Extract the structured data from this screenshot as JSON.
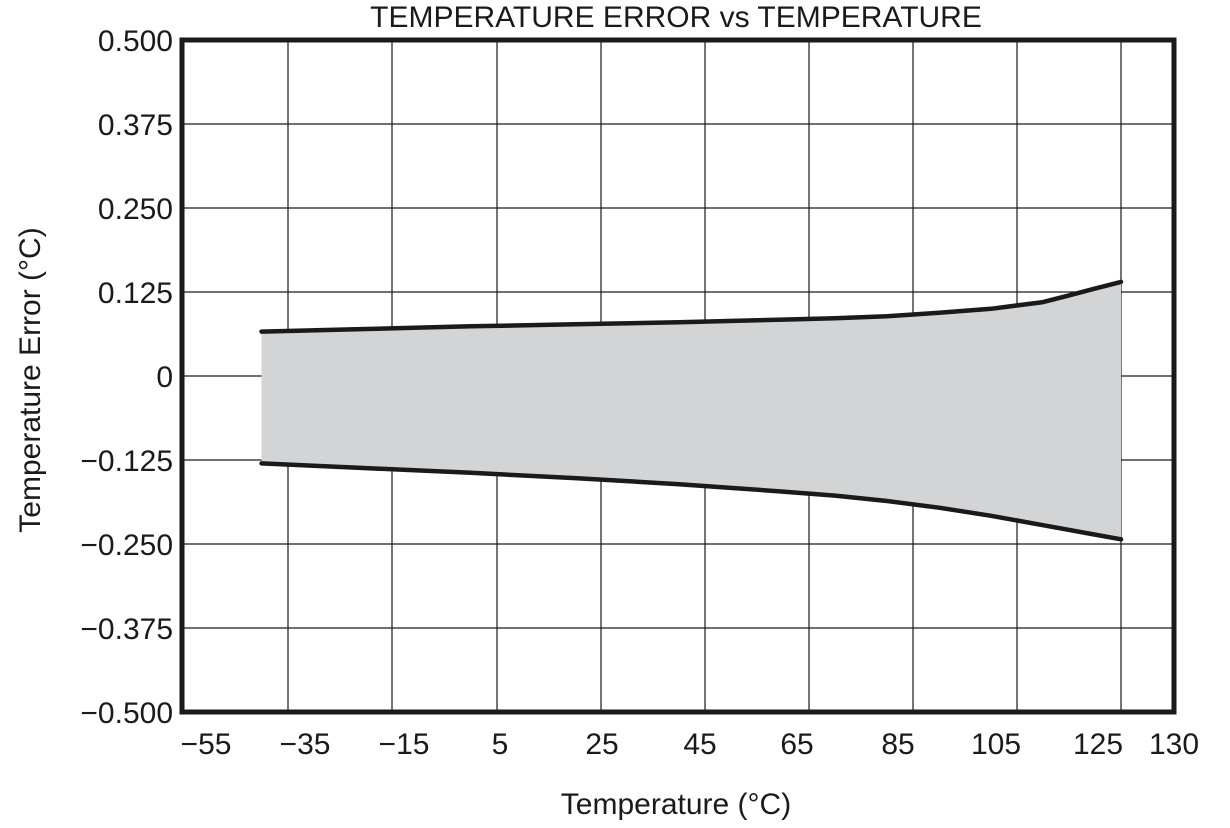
{
  "chart_data": {
    "type": "area",
    "title": "TEMPERATURE ERROR vs TEMPERATURE",
    "xlabel": "Temperature (°C)",
    "ylabel": "Temperature Error (°C)",
    "x_tick_labels": [
      "−55",
      "−35",
      "−15",
      "5",
      "25",
      "45",
      "65",
      "85",
      "105",
      "125",
      "130"
    ],
    "x_ticks": [
      -55,
      -35,
      -15,
      5,
      25,
      45,
      65,
      85,
      105,
      125,
      130
    ],
    "y_tick_labels": [
      "0.500",
      "0.375",
      "0.250",
      "0.125",
      "0",
      "−0.125",
      "−0.250",
      "−0.375",
      "−0.500"
    ],
    "y_ticks": [
      0.5,
      0.375,
      0.25,
      0.125,
      0,
      -0.125,
      -0.25,
      -0.375,
      -0.5
    ],
    "grid": true,
    "series": [
      {
        "x": [
          -40,
          -20,
          0,
          20,
          40,
          60,
          70,
          80,
          90,
          100,
          110,
          115,
          120,
          125
        ],
        "values": [
          0.066,
          0.07,
          0.074,
          0.077,
          0.08,
          0.084,
          0.086,
          0.089,
          0.094,
          0.1,
          0.11,
          0.12,
          0.13,
          0.14
        ]
      },
      {
        "x": [
          -40,
          -20,
          0,
          20,
          40,
          60,
          70,
          80,
          90,
          100,
          110,
          120,
          125
        ],
        "values": [
          -0.13,
          -0.137,
          -0.144,
          -0.152,
          -0.161,
          -0.172,
          -0.178,
          -0.186,
          -0.196,
          -0.208,
          -0.222,
          -0.236,
          -0.243
        ]
      }
    ],
    "band_fill_color": "#d3d4d6",
    "line_color": "#1a1a1a",
    "grid_color": "#1a1a1a"
  }
}
